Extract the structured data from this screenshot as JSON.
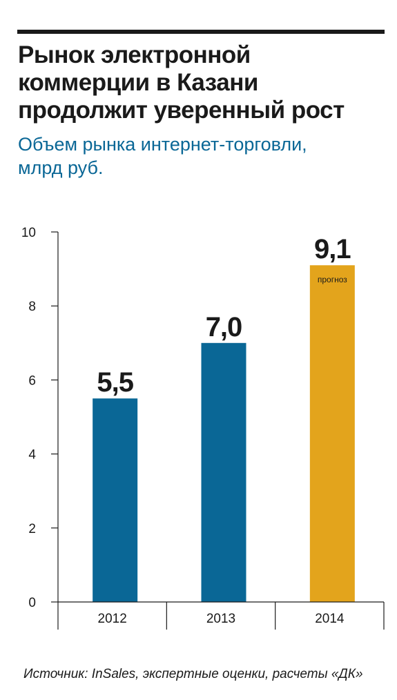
{
  "header": {
    "title": "Рынок электронной\nкоммерции в Казани\nпродолжит уверенный рост",
    "subtitle": "Объем рынка интернет-торговли,\nмлрд руб."
  },
  "chart_data": {
    "type": "bar",
    "title": "Рынок электронной коммерции в Казани продолжит уверенный рост",
    "subtitle": "Объем рынка интернет-торговли, млрд руб.",
    "categories": [
      "2012",
      "2013",
      "2014"
    ],
    "values": [
      5.5,
      7.0,
      9.1
    ],
    "value_labels": [
      "5,5",
      "7,0",
      "9,1"
    ],
    "bar_notes": [
      "",
      "",
      "прогноз"
    ],
    "bar_colors": [
      "#0a6796",
      "#0a6796",
      "#e3a41c"
    ],
    "yticks": [
      0,
      2,
      4,
      6,
      8,
      10
    ],
    "ylim": [
      0,
      10
    ],
    "xlabel": "",
    "ylabel": "",
    "grid": false
  },
  "footer": {
    "source": "Источник: InSales, экспертные оценки, расчеты «ДК»"
  },
  "colors": {
    "accent_blue": "#0a6796",
    "forecast_orange": "#e3a41c",
    "text": "#1a1a1a"
  }
}
